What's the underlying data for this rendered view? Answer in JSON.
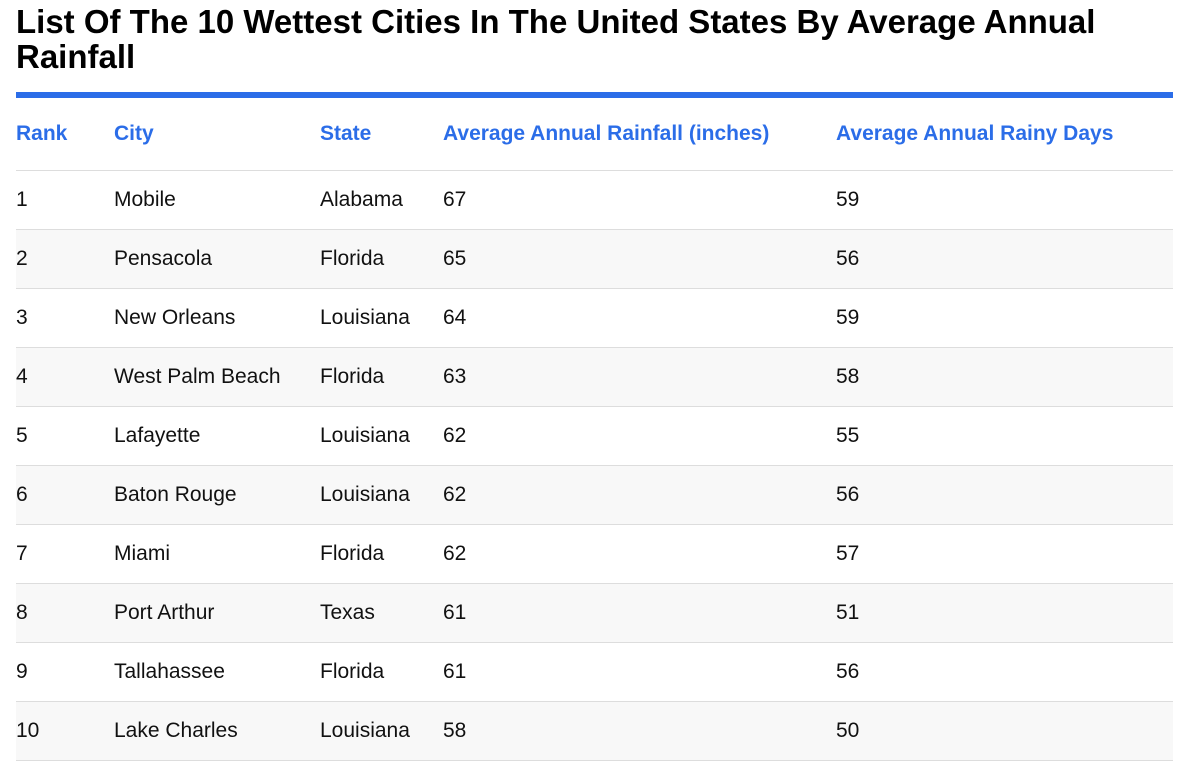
{
  "page": {
    "title": "List Of The 10 Wettest Cities In The United States By Average Annual Rainfall",
    "accent_color": "#2b6de8"
  },
  "table": {
    "headers": {
      "rank": "Rank",
      "city": "City",
      "state": "State",
      "rainfall": "Average Annual Rainfall (inches)",
      "rainy_days": "Average Annual Rainy Days"
    },
    "rows": [
      {
        "rank": "1",
        "city": "Mobile",
        "state": "Alabama",
        "rainfall": "67",
        "rainy_days": "59"
      },
      {
        "rank": "2",
        "city": "Pensacola",
        "state": "Florida",
        "rainfall": "65",
        "rainy_days": "56"
      },
      {
        "rank": "3",
        "city": "New Orleans",
        "state": "Louisiana",
        "rainfall": "64",
        "rainy_days": "59"
      },
      {
        "rank": "4",
        "city": "West Palm Beach",
        "state": "Florida",
        "rainfall": "63",
        "rainy_days": "58"
      },
      {
        "rank": "5",
        "city": "Lafayette",
        "state": "Louisiana",
        "rainfall": "62",
        "rainy_days": "55"
      },
      {
        "rank": "6",
        "city": "Baton Rouge",
        "state": "Louisiana",
        "rainfall": "62",
        "rainy_days": "56"
      },
      {
        "rank": "7",
        "city": "Miami",
        "state": "Florida",
        "rainfall": "62",
        "rainy_days": "57"
      },
      {
        "rank": "8",
        "city": "Port Arthur",
        "state": "Texas",
        "rainfall": "61",
        "rainy_days": "51"
      },
      {
        "rank": "9",
        "city": "Tallahassee",
        "state": "Florida",
        "rainfall": "61",
        "rainy_days": "56"
      },
      {
        "rank": "10",
        "city": "Lake Charles",
        "state": "Louisiana",
        "rainfall": "58",
        "rainy_days": "50"
      }
    ]
  }
}
